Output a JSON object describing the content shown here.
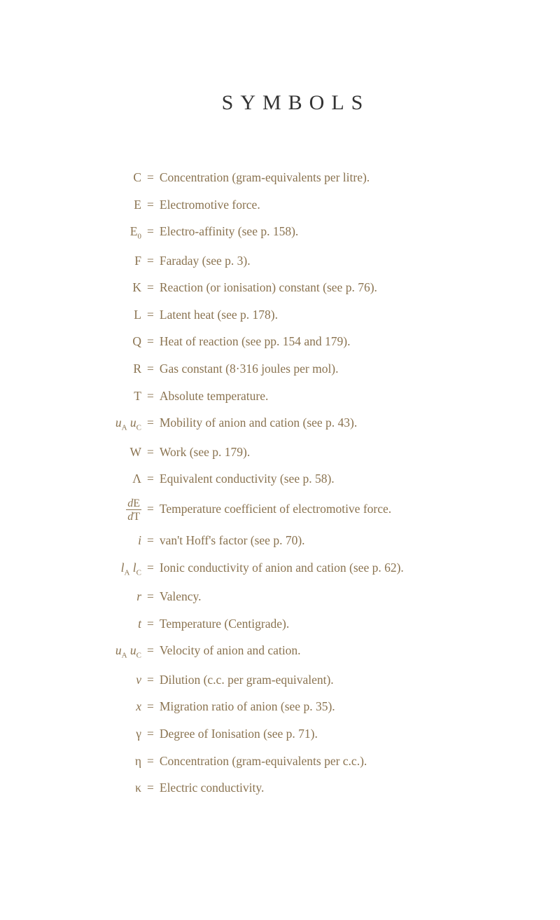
{
  "title": "SYMBOLS",
  "colors": {
    "text": "#8a7350",
    "title": "#333333",
    "background": "#ffffff"
  },
  "typography": {
    "title_fontsize": 30,
    "title_letterspacing": 10,
    "body_fontsize": 17.5,
    "font_family": "Georgia, Times New Roman, serif"
  },
  "symbols": [
    {
      "sym": "C",
      "def": "Concentration (gram-equivalents per litre)."
    },
    {
      "sym": "E",
      "def": "Electromotive force."
    },
    {
      "sym": "E",
      "sub": "0",
      "def": "Electro-affinity (see p. 158)."
    },
    {
      "sym": "F",
      "def": "Faraday (see p. 3)."
    },
    {
      "sym": "K",
      "def": "Reaction (or ionisation) constant (see p. 76)."
    },
    {
      "sym": "L",
      "def": "Latent heat (see p. 178)."
    },
    {
      "sym": "Q",
      "def": "Heat of reaction (see pp. 154 and 179)."
    },
    {
      "sym": "R",
      "def": "Gas constant (8·316 joules per mol)."
    },
    {
      "sym": "T",
      "def": "Absolute temperature."
    },
    {
      "sym_pair": [
        {
          "s": "u",
          "sub": "A",
          "italic": true
        },
        {
          "s": "u",
          "sub": "C",
          "italic": true
        }
      ],
      "def": "Mobility of anion and cation (see p. 43)."
    },
    {
      "sym": "W",
      "def": "Work (see p. 179)."
    },
    {
      "sym": "Λ",
      "def": "Equivalent conductivity (see p. 58)."
    },
    {
      "fraction": {
        "num": "dE",
        "numItalic": "d",
        "numRest": "E",
        "den": "dT",
        "denItalic": "d",
        "denRest": "T"
      },
      "def": "Temperature coefficient of electromotive force."
    },
    {
      "sym": "i",
      "italic": true,
      "def": "van't Hoff's factor (see p. 70)."
    },
    {
      "sym_pair": [
        {
          "s": "l",
          "sub": "A",
          "italic": true
        },
        {
          "s": "l",
          "sub": "C",
          "italic": true
        }
      ],
      "def": "Ionic conductivity of anion and cation (see p. 62)."
    },
    {
      "sym": "r",
      "italic": true,
      "def": "Valency."
    },
    {
      "sym": "t",
      "italic": true,
      "def": "Temperature (Centigrade)."
    },
    {
      "sym_pair": [
        {
          "s": "u",
          "sub": "A",
          "italic": true
        },
        {
          "s": "u",
          "sub": "C",
          "italic": true
        }
      ],
      "def": "Velocity of anion and cation."
    },
    {
      "sym": "v",
      "italic": true,
      "def": "Dilution (c.c. per gram-equivalent)."
    },
    {
      "sym": "x",
      "italic": true,
      "def": "Migration ratio of anion (see p. 35)."
    },
    {
      "sym": "γ",
      "def": "Degree of Ionisation (see p. 71)."
    },
    {
      "sym": "η",
      "def": "Concentration (gram-equivalents per c.c.)."
    },
    {
      "sym": "κ",
      "def": "Electric conductivity."
    }
  ]
}
